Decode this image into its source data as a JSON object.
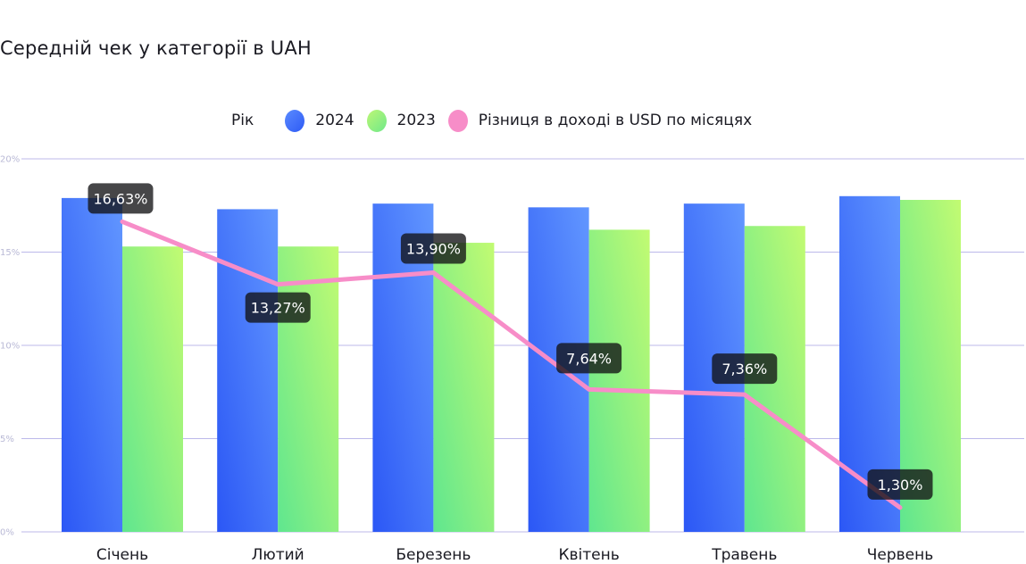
{
  "title": "Середній чек у категорії в UAH",
  "legend": {
    "title": "Рік",
    "items": [
      {
        "label": "2024",
        "color": "#3f6dfa"
      },
      {
        "label": "2023",
        "color": "#8ff07e"
      },
      {
        "label": "Різниця в доході в USD по місяцях",
        "color": "#f78dc8"
      }
    ]
  },
  "chart_data": {
    "type": "bar",
    "title": "Середній чек у категорії в UAH",
    "xlabel": "",
    "ylabel": "",
    "ylim": [
      0,
      20
    ],
    "yticks": [
      0,
      5,
      10,
      15,
      20
    ],
    "ytick_labels": [
      "0%",
      "5%",
      "10%",
      "15%",
      "20%"
    ],
    "grid": true,
    "legend_position": "top",
    "categories": [
      "Січень",
      "Лютий",
      "Березень",
      "Квітень",
      "Травень",
      "Червень"
    ],
    "series": [
      {
        "name": "2024",
        "type": "bar",
        "color": "#3f6dfa",
        "values": [
          17.9,
          17.3,
          17.6,
          17.4,
          17.6,
          18.0
        ]
      },
      {
        "name": "2023",
        "type": "bar",
        "color": "#8ff07e",
        "values": [
          15.3,
          15.3,
          15.5,
          16.2,
          16.4,
          17.8
        ]
      },
      {
        "name": "Різниця в доході в USD по місяцях",
        "type": "line",
        "color": "#f78dc8",
        "values": [
          16.63,
          13.27,
          13.9,
          7.64,
          7.36,
          1.3
        ],
        "labels": [
          "16,63%",
          "13,27%",
          "13,90%",
          "7,64%",
          "7,36%",
          "1,30%"
        ]
      }
    ]
  }
}
